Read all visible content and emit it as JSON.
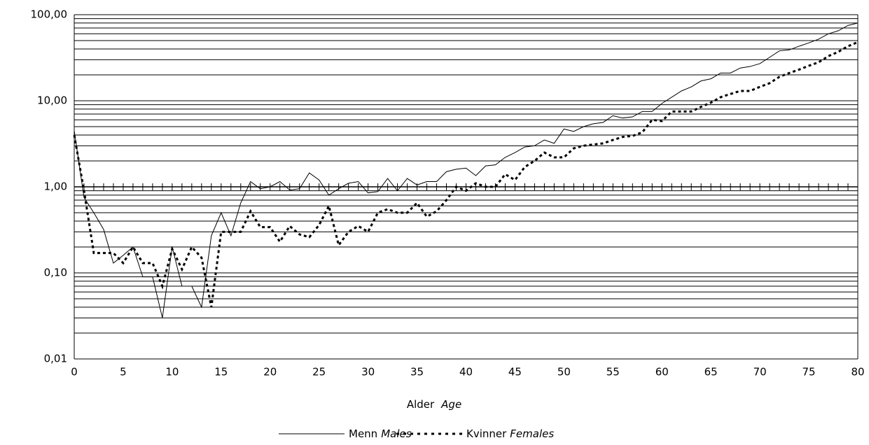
{
  "chart_data": {
    "type": "line",
    "log_scale_y": true,
    "x_label": "Alder",
    "x_label_en": "Age",
    "x": [
      0,
      1,
      2,
      3,
      4,
      5,
      6,
      7,
      8,
      9,
      10,
      11,
      12,
      13,
      14,
      15,
      16,
      17,
      18,
      19,
      20,
      21,
      22,
      23,
      24,
      25,
      26,
      27,
      28,
      29,
      30,
      31,
      32,
      33,
      34,
      35,
      36,
      37,
      38,
      39,
      40,
      41,
      42,
      43,
      44,
      45,
      46,
      47,
      48,
      49,
      50,
      51,
      52,
      53,
      54,
      55,
      56,
      57,
      58,
      59,
      60,
      61,
      62,
      63,
      64,
      65,
      66,
      67,
      68,
      69,
      70,
      71,
      72,
      73,
      74,
      75,
      76,
      77,
      78,
      79,
      80
    ],
    "xlim": [
      0,
      80
    ],
    "xticks": [
      0,
      5,
      10,
      15,
      20,
      25,
      30,
      35,
      40,
      45,
      50,
      55,
      60,
      65,
      70,
      75,
      80
    ],
    "ylim": [
      0.01,
      100
    ],
    "yticks": [
      {
        "value": 0.01,
        "label": "0,01"
      },
      {
        "value": 0.1,
        "label": "0,10"
      },
      {
        "value": 1,
        "label": "1,00"
      },
      {
        "value": 10,
        "label": "10,00"
      },
      {
        "value": 100,
        "label": "100,00"
      }
    ],
    "y_minor_grid": [
      0.02,
      0.03,
      0.04,
      0.05,
      0.06,
      0.07,
      0.08,
      0.09,
      0.2,
      0.3,
      0.4,
      0.5,
      0.6,
      0.7,
      0.8,
      0.9,
      2,
      3,
      4,
      5,
      6,
      7,
      8,
      9,
      20,
      30,
      40,
      50,
      60,
      70,
      80,
      90
    ],
    "x_axis_crossing": 1,
    "grid": true,
    "legend": "bottom",
    "series": [
      {
        "name": "Menn",
        "name_en": "Males",
        "color": "#000000",
        "dashed": false,
        "values": [
          4.5,
          0.75,
          0.5,
          0.32,
          0.13,
          0.16,
          0.2,
          0.09,
          0.09,
          0.03,
          0.2,
          0.07,
          0.07,
          0.04,
          0.27,
          0.5,
          0.27,
          0.65,
          1.15,
          0.95,
          1.0,
          1.15,
          0.92,
          0.95,
          1.45,
          1.2,
          0.8,
          0.95,
          1.1,
          1.15,
          0.85,
          0.88,
          1.25,
          0.9,
          1.25,
          1.05,
          1.15,
          1.15,
          1.5,
          1.6,
          1.65,
          1.35,
          1.75,
          1.8,
          2.2,
          2.5,
          2.9,
          3.0,
          3.5,
          3.2,
          4.7,
          4.4,
          5.0,
          5.4,
          5.6,
          6.7,
          6.3,
          6.5,
          7.5,
          7.5,
          9.3,
          11,
          13,
          14.5,
          17,
          18,
          21,
          21,
          24,
          25,
          27,
          32,
          38,
          39,
          43,
          47,
          52,
          60,
          65,
          75,
          80
        ]
      },
      {
        "name": "Kvinner",
        "name_en": "Females",
        "color": "#000000",
        "dashed": true,
        "values": [
          4.0,
          0.9,
          0.17,
          0.17,
          0.17,
          0.13,
          0.2,
          0.13,
          0.13,
          0.07,
          0.19,
          0.11,
          0.2,
          0.15,
          0.04,
          0.3,
          0.3,
          0.3,
          0.52,
          0.34,
          0.34,
          0.23,
          0.35,
          0.28,
          0.26,
          0.36,
          0.6,
          0.21,
          0.3,
          0.35,
          0.3,
          0.5,
          0.55,
          0.5,
          0.5,
          0.65,
          0.45,
          0.52,
          0.7,
          1.0,
          0.9,
          1.1,
          1.0,
          1.0,
          1.4,
          1.2,
          1.7,
          2.0,
          2.5,
          2.2,
          2.2,
          2.8,
          3.0,
          3.1,
          3.2,
          3.5,
          3.8,
          3.9,
          4.3,
          6.0,
          5.8,
          7.5,
          7.5,
          7.5,
          8.5,
          9.5,
          11,
          12,
          13,
          13,
          14.5,
          16,
          19,
          21,
          23,
          25.5,
          28,
          33,
          37,
          43,
          48
        ]
      }
    ]
  }
}
